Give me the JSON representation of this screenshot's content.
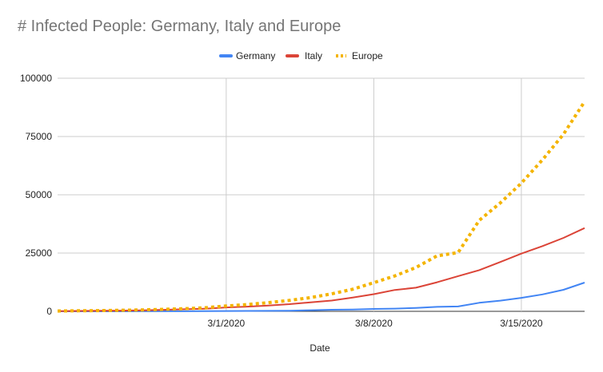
{
  "chart_data": {
    "type": "line",
    "title": "# Infected People: Germany, Italy and Europe",
    "xlabel": "Date",
    "ylabel": "",
    "ylim": [
      0,
      100000
    ],
    "yticks": [
      0,
      25000,
      50000,
      75000,
      100000
    ],
    "yticklabels": [
      "0",
      "25000",
      "50000",
      "75000",
      "100000"
    ],
    "xlim": [
      "2020-02-22",
      "2020-03-18"
    ],
    "xticks": [
      "2020-03-01",
      "2020-03-08",
      "2020-03-15"
    ],
    "xticklabels": [
      "3/1/2020",
      "3/8/2020",
      "3/15/2020"
    ],
    "grid": true,
    "legend_position": "top-center",
    "x": [
      "2020-02-22",
      "2020-02-23",
      "2020-02-24",
      "2020-02-25",
      "2020-02-26",
      "2020-02-27",
      "2020-02-28",
      "2020-02-29",
      "2020-03-01",
      "2020-03-02",
      "2020-03-03",
      "2020-03-04",
      "2020-03-05",
      "2020-03-06",
      "2020-03-07",
      "2020-03-08",
      "2020-03-09",
      "2020-03-10",
      "2020-03-11",
      "2020-03-12",
      "2020-03-13",
      "2020-03-14",
      "2020-03-15",
      "2020-03-16",
      "2020-03-17",
      "2020-03-18"
    ],
    "series": [
      {
        "name": "Germany",
        "color": "#4285f4",
        "style": "solid",
        "values": [
          16,
          16,
          16,
          16,
          27,
          46,
          48,
          79,
          130,
          159,
          196,
          262,
          482,
          670,
          799,
          1040,
          1176,
          1457,
          1908,
          2078,
          3675,
          4585,
          5795,
          7272,
          9257,
          12327
        ]
      },
      {
        "name": "Italy",
        "color": "#db4437",
        "style": "solid",
        "values": [
          62,
          155,
          229,
          322,
          453,
          655,
          888,
          1128,
          1694,
          2036,
          2502,
          3089,
          3858,
          4636,
          5883,
          7375,
          9172,
          10149,
          12462,
          15113,
          17660,
          21157,
          24747,
          27980,
          31506,
          35713
        ]
      },
      {
        "name": "Europe",
        "color": "#f4b400",
        "style": "dotted",
        "values": [
          140,
          240,
          300,
          450,
          620,
          850,
          1130,
          1550,
          2280,
          2900,
          3750,
          4700,
          5900,
          7500,
          9500,
          12300,
          15200,
          18800,
          23800,
          25200,
          39000,
          46500,
          55000,
          65000,
          76000,
          90000
        ]
      }
    ]
  }
}
